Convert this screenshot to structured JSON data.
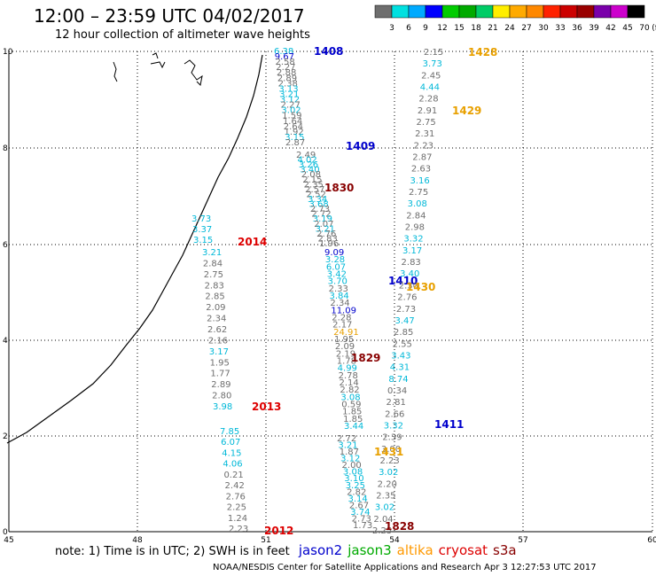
{
  "header": {
    "title": "12:00 – 23:59 UTC 04/02/2017",
    "subtitle": "12 hour collection of altimeter wave heights"
  },
  "legend": {
    "ticks": [
      "3",
      "6",
      "9",
      "12",
      "15",
      "18",
      "21",
      "24",
      "27",
      "30",
      "33",
      "36",
      "39",
      "42",
      "45",
      "70",
      "(ft)"
    ],
    "colors": [
      "#6e6e6e",
      "#00e0e0",
      "#00aaff",
      "#0000ff",
      "#00cc00",
      "#00aa00",
      "#00cc66",
      "#ffee00",
      "#ffaa00",
      "#ff8800",
      "#ff2200",
      "#cc0000",
      "#990000",
      "#7a00aa",
      "#cc00cc",
      "#000000"
    ]
  },
  "axes": {
    "x_ticks": [
      "45",
      "48",
      "51",
      "54",
      "57",
      "60"
    ],
    "y_ticks": [
      "0",
      "2",
      "4",
      "6",
      "8",
      "10"
    ]
  },
  "tracks": [
    {
      "time": "1408",
      "time_color": "#0000cc",
      "time_pos": [
        354,
        57
      ],
      "values": [
        [
          "6.38",
          "#00b8d8"
        ],
        [
          "9.67",
          "#0000cc"
        ],
        [
          "2.58",
          "#6e6e6e"
        ],
        [
          "2.27",
          "#6e6e6e"
        ],
        [
          "2.88",
          "#6e6e6e"
        ],
        [
          "2.89",
          "#6e6e6e"
        ],
        [
          "2.38",
          "#6e6e6e"
        ],
        [
          "3.13",
          "#00b8d8"
        ],
        [
          "3.21",
          "#00b8d8"
        ],
        [
          "3.12",
          "#00b8d8"
        ],
        [
          "2.27",
          "#6e6e6e"
        ],
        [
          "3.02",
          "#00b8d8"
        ],
        [
          "1.59",
          "#6e6e6e"
        ],
        [
          "1.64",
          "#6e6e6e"
        ],
        [
          "2.64",
          "#6e6e6e"
        ],
        [
          "1.92",
          "#6e6e6e"
        ],
        [
          "3.15",
          "#00b8d8"
        ],
        [
          "2.87",
          "#6e6e6e"
        ]
      ]
    },
    {
      "time": "1409",
      "time_color": "#0000cc",
      "time_pos": [
        390,
        164
      ],
      "values": [
        [
          "2.49",
          "#6e6e6e"
        ],
        [
          "4.02",
          "#00b8d8"
        ],
        [
          "3.26",
          "#00b8d8"
        ],
        [
          "3.40",
          "#00b8d8"
        ],
        [
          "2.08",
          "#6e6e6e"
        ],
        [
          "2.15",
          "#6e6e6e"
        ],
        [
          "2.35",
          "#6e6e6e"
        ],
        [
          "2.57",
          "#6e6e6e"
        ],
        [
          "2.52",
          "#6e6e6e"
        ],
        [
          "3.34",
          "#00b8d8"
        ],
        [
          "3.68",
          "#00b8d8"
        ],
        [
          "2.73",
          "#6e6e6e"
        ],
        [
          "2.72",
          "#6e6e6e"
        ],
        [
          "3.19",
          "#00b8d8"
        ],
        [
          "2.07",
          "#6e6e6e"
        ],
        [
          "3.21",
          "#00b8d8"
        ],
        [
          "2.76",
          "#6e6e6e"
        ],
        [
          "2.83",
          "#6e6e6e"
        ],
        [
          "1.96",
          "#6e6e6e"
        ]
      ]
    },
    {
      "time": "1410",
      "time_color": "#0000cc",
      "time_pos": [
        438,
        316
      ],
      "values": [
        [
          "9.09",
          "#0000cc"
        ],
        [
          "3.28",
          "#00b8d8"
        ],
        [
          "6.07",
          "#00b8d8"
        ],
        [
          "3.42",
          "#00b8d8"
        ],
        [
          "3.70",
          "#00b8d8"
        ],
        [
          "2.33",
          "#6e6e6e"
        ],
        [
          "3.84",
          "#00b8d8"
        ],
        [
          "2.34",
          "#6e6e6e"
        ],
        [
          "11.09",
          "#0000cc"
        ],
        [
          "2.28",
          "#6e6e6e"
        ],
        [
          "2.17",
          "#6e6e6e"
        ],
        [
          "24.91",
          "#e8a000"
        ],
        [
          "1.95",
          "#6e6e6e"
        ],
        [
          "2.09",
          "#6e6e6e"
        ],
        [
          "2.19",
          "#6e6e6e"
        ],
        [
          "1.78",
          "#6e6e6e"
        ],
        [
          "4.99",
          "#00b8d8"
        ],
        [
          "2.78",
          "#6e6e6e"
        ],
        [
          "2.14",
          "#6e6e6e"
        ],
        [
          "2.82",
          "#6e6e6e"
        ],
        [
          "3.08",
          "#00b8d8"
        ],
        [
          "0.59",
          "#6e6e6e"
        ],
        [
          "1.85",
          "#6e6e6e"
        ],
        [
          "1.85",
          "#6e6e6e"
        ],
        [
          "3.44",
          "#00b8d8"
        ]
      ]
    },
    {
      "time": "1411",
      "time_color": "#0000cc",
      "time_pos": [
        490,
        478
      ],
      "values": [
        [
          "2.72",
          "#6e6e6e"
        ],
        [
          "3.21",
          "#00b8d8"
        ],
        [
          "1.87",
          "#6e6e6e"
        ],
        [
          "3.12",
          "#00b8d8"
        ],
        [
          "2.00",
          "#6e6e6e"
        ],
        [
          "3.08",
          "#00b8d8"
        ],
        [
          "3.10",
          "#00b8d8"
        ],
        [
          "3.25",
          "#00b8d8"
        ],
        [
          "2.82",
          "#6e6e6e"
        ],
        [
          "3.14",
          "#00b8d8"
        ],
        [
          "2.67",
          "#6e6e6e"
        ],
        [
          "3.74",
          "#00b8d8"
        ],
        [
          "2.73",
          "#6e6e6e"
        ],
        [
          "1.73",
          "#6e6e6e"
        ]
      ]
    },
    {
      "time": "1428",
      "time_color": "#e8a000",
      "time_pos": [
        528,
        58
      ],
      "values": [
        [
          "2.15",
          "#6e6e6e"
        ],
        [
          "3.73",
          "#00b8d8"
        ],
        [
          "2.45",
          "#6e6e6e"
        ],
        [
          "4.44",
          "#00b8d8"
        ],
        [
          "2.28",
          "#6e6e6e"
        ],
        [
          "2.91",
          "#6e6e6e"
        ],
        [
          "2.75",
          "#6e6e6e"
        ],
        [
          "2.31",
          "#6e6e6e"
        ],
        [
          "2.23",
          "#6e6e6e"
        ],
        [
          "2.87",
          "#6e6e6e"
        ],
        [
          "2.63",
          "#6e6e6e"
        ],
        [
          "3.16",
          "#00b8d8"
        ],
        [
          "2.75",
          "#6e6e6e"
        ],
        [
          "3.08",
          "#00b8d8"
        ],
        [
          "2.84",
          "#6e6e6e"
        ],
        [
          "2.98",
          "#6e6e6e"
        ],
        [
          "3.32",
          "#00b8d8"
        ],
        [
          "3.17",
          "#00b8d8"
        ],
        [
          "2.83",
          "#6e6e6e"
        ],
        [
          "3.40",
          "#00b8d8"
        ],
        [
          "2.30",
          "#6e6e6e"
        ],
        [
          "2.76",
          "#6e6e6e"
        ],
        [
          "2.73",
          "#6e6e6e"
        ],
        [
          "3.47",
          "#00b8d8"
        ],
        [
          "2.85",
          "#6e6e6e"
        ],
        [
          "2.55",
          "#6e6e6e"
        ],
        [
          "3.43",
          "#00b8d8"
        ],
        [
          "4.31",
          "#00b8d8"
        ],
        [
          "8.74",
          "#00b8d8"
        ],
        [
          "0.34",
          "#6e6e6e"
        ],
        [
          "2.81",
          "#6e6e6e"
        ],
        [
          "2.66",
          "#6e6e6e"
        ],
        [
          "3.32",
          "#00b8d8"
        ],
        [
          "2.39",
          "#6e6e6e"
        ],
        [
          "3.00",
          "#6e6e6e"
        ],
        [
          "2.23",
          "#6e6e6e"
        ],
        [
          "3.02",
          "#00b8d8"
        ],
        [
          "2.20",
          "#6e6e6e"
        ],
        [
          "2.35",
          "#6e6e6e"
        ],
        [
          "3.02",
          "#00b8d8"
        ],
        [
          "2.04",
          "#6e6e6e"
        ],
        [
          "2.25",
          "#6e6e6e"
        ]
      ]
    },
    {
      "time": "2012",
      "time_color": "#dd0000",
      "time_pos": [
        298,
        598
      ],
      "values": [
        [
          "7.85",
          "#00b8d8"
        ],
        [
          "6.07",
          "#00b8d8"
        ],
        [
          "4.15",
          "#00b8d8"
        ],
        [
          "4.06",
          "#00b8d8"
        ],
        [
          "0.21",
          "#6e6e6e"
        ],
        [
          "2.42",
          "#6e6e6e"
        ],
        [
          "2.76",
          "#6e6e6e"
        ],
        [
          "2.25",
          "#6e6e6e"
        ],
        [
          "1.24",
          "#6e6e6e"
        ],
        [
          "2.23",
          "#6e6e6e"
        ]
      ]
    },
    {
      "time": "2013",
      "time_color": "#dd0000",
      "time_pos": [
        284,
        458
      ],
      "values": [
        [
          "3.21",
          "#00b8d8"
        ],
        [
          "2.84",
          "#6e6e6e"
        ],
        [
          "2.75",
          "#6e6e6e"
        ],
        [
          "2.83",
          "#6e6e6e"
        ],
        [
          "2.85",
          "#6e6e6e"
        ],
        [
          "2.09",
          "#6e6e6e"
        ],
        [
          "2.34",
          "#6e6e6e"
        ],
        [
          "2.62",
          "#6e6e6e"
        ],
        [
          "2.16",
          "#6e6e6e"
        ],
        [
          "3.17",
          "#00b8d8"
        ],
        [
          "1.95",
          "#6e6e6e"
        ],
        [
          "1.77",
          "#6e6e6e"
        ],
        [
          "2.89",
          "#6e6e6e"
        ],
        [
          "2.80",
          "#6e6e6e"
        ],
        [
          "3.98",
          "#00b8d8"
        ]
      ]
    },
    {
      "time": "2014",
      "time_color": "#dd0000",
      "time_pos": [
        268,
        272
      ],
      "values": [
        [
          "3.73",
          "#00b8d8"
        ],
        [
          "3.37",
          "#00b8d8"
        ],
        [
          "3.15",
          "#00b8d8"
        ]
      ]
    }
  ],
  "extra_labels": [
    {
      "text": "1429",
      "color": "#e8a000"
    },
    {
      "text": "1430",
      "color": "#e8a000"
    },
    {
      "text": "1431",
      "color": "#e8a000"
    },
    {
      "text": "1829",
      "color": "#880000"
    },
    {
      "text": "1830",
      "color": "#880000"
    },
    {
      "text": "1828",
      "color": "#880000"
    }
  ],
  "note": {
    "prefix": "note:  1) Time is in UTC;  2) SWH is in feet",
    "satellites": [
      {
        "name": "jason2",
        "color": "#0000cc"
      },
      {
        "name": "jason3",
        "color": "#00aa00"
      },
      {
        "name": "altika",
        "color": "#ff9900"
      },
      {
        "name": "cryosat",
        "color": "#dd0000"
      },
      {
        "name": "s3a",
        "color": "#880000"
      }
    ]
  },
  "credit": "NOAA/NESDIS Center for Satellite Applications and Research     Apr  3 12:27:53 UTC 2017"
}
